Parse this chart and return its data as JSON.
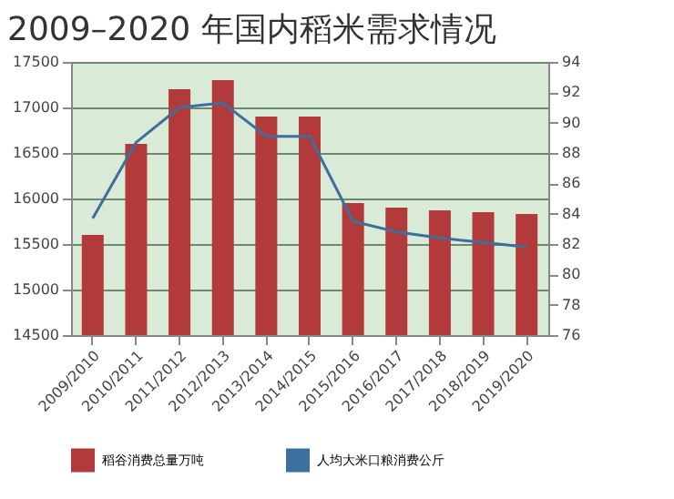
{
  "chart_data": {
    "type": "bar",
    "title": "2009–2020 年国内稻米需求情况",
    "categories": [
      "2009/2010",
      "2010/2011",
      "2011/2012",
      "2012/2013",
      "2013/2014",
      "2014/2015",
      "2015/2016",
      "2016/2017",
      "2017/2018",
      "2018/2019",
      "2019/2020"
    ],
    "series": [
      {
        "name": "稻谷消费总量万吨",
        "color": "#b33a3a",
        "values": [
          15600,
          16600,
          17200,
          17300,
          16900,
          16900,
          15950,
          15900,
          15870,
          15850,
          15830
        ]
      },
      {
        "name": "人均大米口粮消费公斤",
        "color": "#3c6e9e",
        "type": "line",
        "axis": "y2",
        "values": [
          83.7,
          88.7,
          91.0,
          91.3,
          89.1,
          89.1,
          83.5,
          82.8,
          82.4,
          82.1,
          81.8
        ]
      }
    ],
    "ylim": [
      14500,
      17500
    ],
    "yticks": [
      14500,
      15000,
      15500,
      16000,
      16500,
      17000,
      17500
    ],
    "y2lim": [
      76,
      94
    ],
    "y2ticks": [
      76,
      78,
      80,
      82,
      84,
      86,
      88,
      90,
      92,
      94
    ],
    "grid": "y",
    "legend": "bottom",
    "marker": "none",
    "line_style": "solid"
  }
}
